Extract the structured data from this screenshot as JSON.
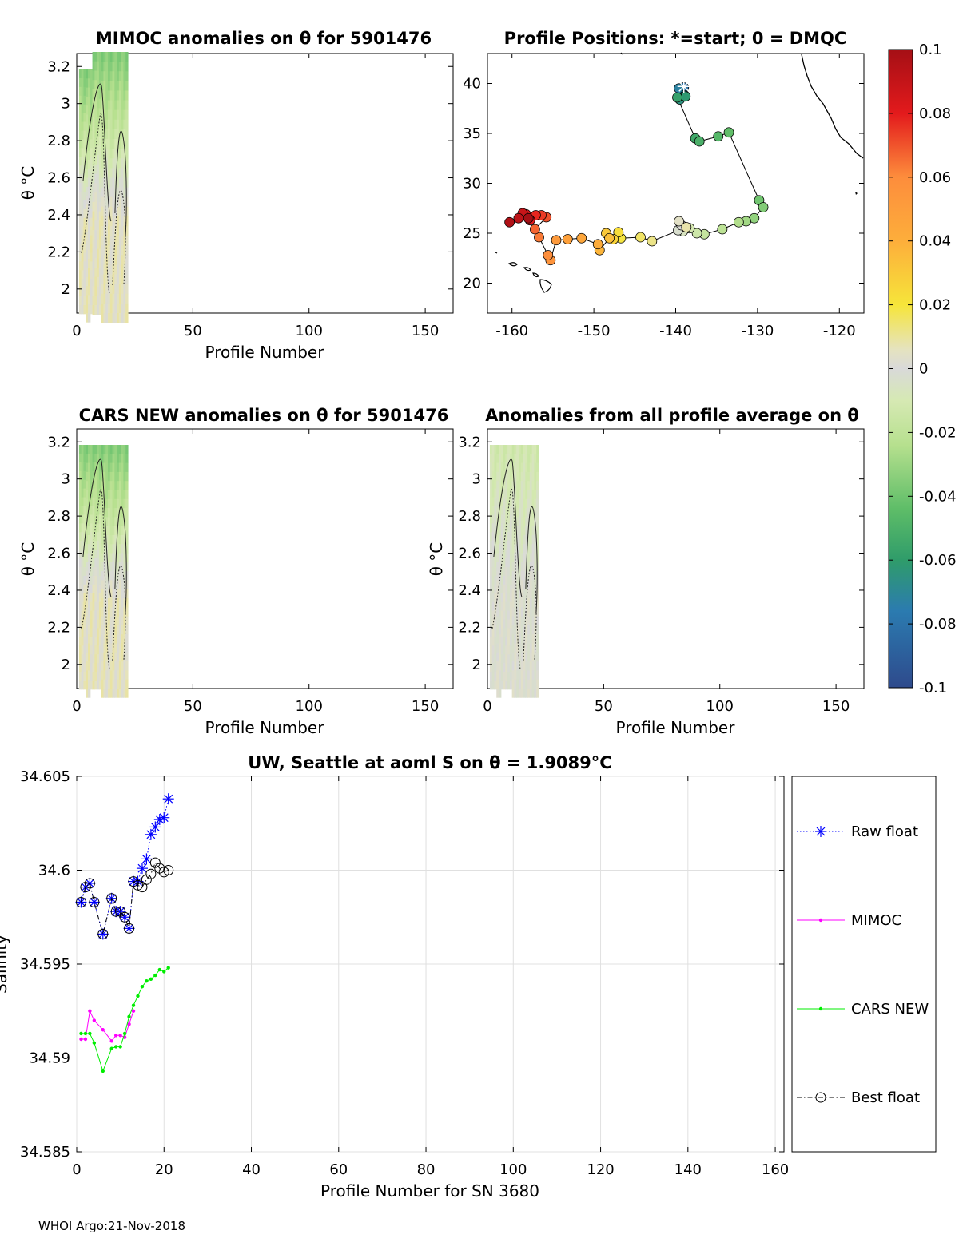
{
  "footer": "WHOI Argo:21-Nov-2018",
  "colorbar": {
    "range": [
      -0.1,
      0.1
    ],
    "tick_labels": [
      "0.1",
      "0.08",
      "0.06",
      "0.04",
      "0.02",
      "0",
      "-0.02",
      "-0.04",
      "-0.06",
      "-0.08",
      "-0.1"
    ]
  },
  "chart_data": [
    {
      "type": "heatmap",
      "title": "MIMOC anomalies on θ  for 5901476",
      "xlabel": "Profile Number",
      "ylabel": "θ °C",
      "xlim": [
        0,
        162
      ],
      "ylim": [
        1.87,
        3.27
      ],
      "xticks": [
        "0",
        "50",
        "100",
        "150"
      ],
      "yticks": [
        "2",
        "2.2",
        "2.4",
        "2.6",
        "2.8",
        "3",
        "3.2"
      ],
      "profiles_with_data": [
        1,
        22
      ],
      "anomaly_top": -0.035,
      "anomaly_bottom": 0.005
    },
    {
      "type": "scatter",
      "title": "Profile Positions: *=start; 0 = DMQC",
      "xlabel": "",
      "ylabel": "",
      "xlim": [
        -163,
        -117
      ],
      "ylim": [
        17,
        43
      ],
      "xticks": [
        "-160",
        "-150",
        "-140",
        "-130",
        "-120"
      ],
      "yticks": [
        "20",
        "25",
        "30",
        "35",
        "40"
      ],
      "track": [
        [
          -139.0,
          39.6
        ],
        [
          -139.3,
          39.2
        ],
        [
          -139.6,
          39.5
        ],
        [
          -138.9,
          38.8
        ],
        [
          -139.5,
          38.4
        ],
        [
          -138.8,
          38.7
        ],
        [
          -139.8,
          38.6
        ],
        [
          -137.6,
          34.5
        ],
        [
          -137.1,
          34.2
        ],
        [
          -134.8,
          34.7
        ],
        [
          -133.5,
          35.1
        ],
        [
          -129.8,
          28.3
        ],
        [
          -129.3,
          27.6
        ],
        [
          -130.4,
          26.5
        ],
        [
          -131.4,
          26.2
        ],
        [
          -132.3,
          26.1
        ],
        [
          -134.3,
          25.4
        ],
        [
          -136.5,
          24.9
        ],
        [
          -137.4,
          25.0
        ],
        [
          -138.3,
          25.5
        ],
        [
          -139.1,
          25.2
        ],
        [
          -139.7,
          25.3
        ],
        [
          -139.3,
          25.8
        ],
        [
          -139.6,
          26.2
        ],
        [
          -138.7,
          25.6
        ],
        [
          -142.9,
          24.2
        ],
        [
          -144.3,
          24.6
        ],
        [
          -146.7,
          24.5
        ],
        [
          -147.0,
          25.1
        ],
        [
          -147.6,
          24.4
        ],
        [
          -148.5,
          25.0
        ],
        [
          -148.1,
          24.5
        ],
        [
          -149.3,
          23.3
        ],
        [
          -149.5,
          23.9
        ],
        [
          -151.5,
          24.5
        ],
        [
          -153.2,
          24.4
        ],
        [
          -154.6,
          24.3
        ],
        [
          -155.3,
          22.3
        ],
        [
          -155.6,
          22.8
        ],
        [
          -156.7,
          24.6
        ],
        [
          -157.2,
          25.4
        ],
        [
          -155.8,
          26.6
        ],
        [
          -156.4,
          26.8
        ],
        [
          -157.1,
          26.8
        ],
        [
          -157.8,
          26.3
        ],
        [
          -158.3,
          26.9
        ],
        [
          -158.7,
          27.0
        ],
        [
          -159.2,
          26.5
        ],
        [
          -160.3,
          26.1
        ],
        [
          -158.0,
          26.5
        ]
      ],
      "start": [
        -139.0,
        39.7
      ]
    },
    {
      "type": "heatmap",
      "title": "CARS NEW anomalies on θ for 5901476",
      "xlabel": "Profile Number",
      "ylabel": "θ °C",
      "xlim": [
        0,
        162
      ],
      "ylim": [
        1.87,
        3.27
      ],
      "xticks": [
        "0",
        "50",
        "100",
        "150"
      ],
      "yticks": [
        "2",
        "2.2",
        "2.4",
        "2.6",
        "2.8",
        "3",
        "3.2"
      ],
      "profiles_with_data": [
        1,
        22
      ],
      "anomaly_top": -0.035,
      "anomaly_bottom": 0.005
    },
    {
      "type": "heatmap",
      "title": "Anomalies from all profile average on θ",
      "xlabel": "Profile Number",
      "ylabel": "θ °C",
      "xlim": [
        0,
        162
      ],
      "ylim": [
        1.87,
        3.27
      ],
      "xticks": [
        "0",
        "50",
        "100",
        "150"
      ],
      "yticks": [
        "2",
        "2.2",
        "2.4",
        "2.6",
        "2.8",
        "3",
        "3.2"
      ],
      "profiles_with_data": [
        1,
        22
      ],
      "anomaly_top": -0.012,
      "anomaly_bottom": 0.0
    },
    {
      "type": "line",
      "title": "UW, Seattle at aoml S on θ = 1.9089°C",
      "xlabel": "Profile Number for SN 3680",
      "ylabel": "Salinity",
      "xlim": [
        0,
        162
      ],
      "ylim": [
        34.585,
        34.605
      ],
      "xticks": [
        "0",
        "20",
        "40",
        "60",
        "80",
        "100",
        "120",
        "140",
        "160"
      ],
      "yticks": [
        "34.585",
        "34.59",
        "34.595",
        "34.6",
        "34.605"
      ],
      "x": [
        1,
        2,
        3,
        4,
        6,
        8,
        9,
        10,
        11,
        12,
        13,
        14,
        15,
        16,
        17,
        18,
        19,
        20,
        21
      ],
      "series": [
        {
          "name": "Raw float",
          "color": "#0000ff",
          "marker": "star",
          "values": [
            34.5983,
            34.5991,
            34.5993,
            34.5983,
            34.5966,
            34.5985,
            34.5978,
            34.5978,
            34.5975,
            34.5969,
            34.5994,
            34.5994,
            34.6001,
            34.6006,
            34.6019,
            34.6023,
            34.6027,
            34.6028,
            34.6038
          ]
        },
        {
          "name": "MIMOC",
          "color": "#ff00ff",
          "marker": "dot",
          "values": [
            34.591,
            34.591,
            34.5925,
            34.592,
            34.5915,
            34.5909,
            34.5912,
            34.5912,
            34.5911,
            34.5918,
            34.5925,
            null,
            null,
            null,
            null,
            null,
            null,
            null,
            null
          ]
        },
        {
          "name": "CARS NEW",
          "color": "#00ee00",
          "marker": "dot",
          "values": [
            34.5913,
            34.5913,
            34.5913,
            34.5908,
            34.5893,
            34.5905,
            34.5906,
            34.5906,
            34.5913,
            34.5922,
            34.5928,
            34.5933,
            34.5938,
            34.5941,
            34.5942,
            34.5944,
            34.5947,
            34.5946,
            34.5948
          ]
        },
        {
          "name": "Best float",
          "color": "#000000",
          "marker": "circle",
          "values": [
            34.5983,
            34.5991,
            34.5993,
            34.5983,
            34.5966,
            34.5985,
            34.5978,
            34.5978,
            34.5975,
            34.5969,
            34.5994,
            34.5992,
            34.5991,
            34.5995,
            34.5998,
            34.6004,
            34.6001,
            34.5999,
            34.6
          ]
        }
      ]
    }
  ]
}
